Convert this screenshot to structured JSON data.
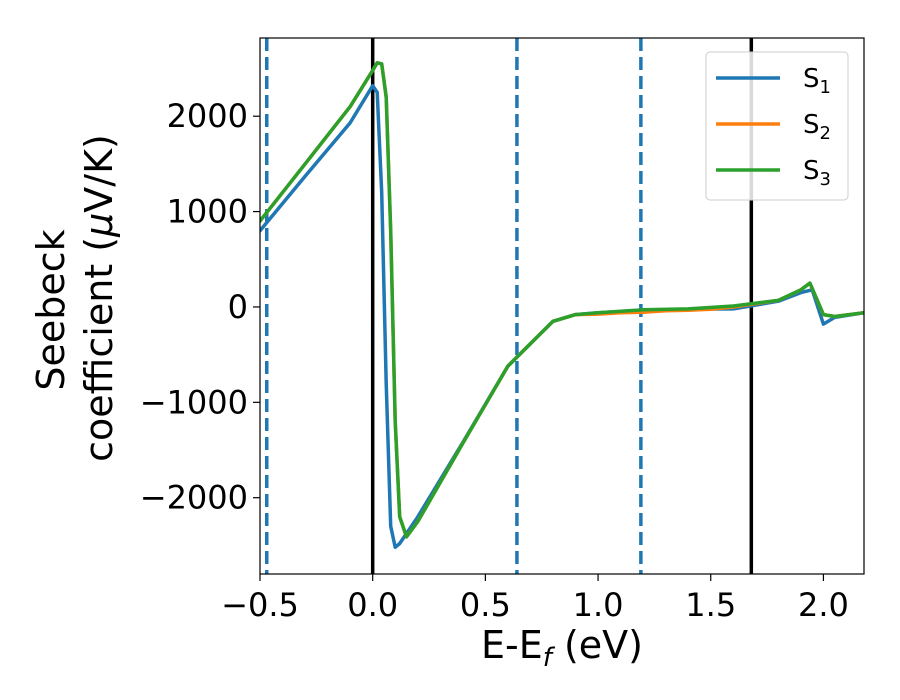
{
  "chart_data": {
    "type": "line",
    "xlabel_main": "E-E",
    "xlabel_sub": "f",
    "xlabel_unit": " (eV)",
    "ylabel_line1": "Seebeck",
    "ylabel_line2_pre": "coefficient  (",
    "ylabel_mu": "μ",
    "ylabel_line2_post": "V/K)",
    "xlim": [
      -0.5,
      2.18
    ],
    "ylim": [
      -2800,
      2820
    ],
    "xticks": [
      -0.5,
      0.0,
      0.5,
      1.0,
      1.5,
      2.0
    ],
    "xtick_labels": [
      "−0.5",
      "0.0",
      "0.5",
      "1.0",
      "1.5",
      "2.0"
    ],
    "yticks": [
      -2000,
      -1000,
      0,
      1000,
      2000
    ],
    "ytick_labels": [
      "−2000",
      "−1000",
      "0",
      "1000",
      "2000"
    ],
    "grid": false,
    "legend_position": "top-right",
    "vlines_solid": [
      0.0,
      1.68
    ],
    "vlines_dashed": [
      -0.47,
      0.64,
      1.19
    ],
    "series": [
      {
        "name_main": "S",
        "name_sub": "1",
        "color": "#1f77b4",
        "x": [
          -0.5,
          -0.3,
          -0.1,
          0.0,
          0.02,
          0.04,
          0.06,
          0.08,
          0.1,
          0.12,
          0.2,
          0.4,
          0.6,
          0.8,
          0.9,
          1.0,
          1.2,
          1.4,
          1.6,
          1.8,
          1.9,
          1.95,
          2.0,
          2.05,
          2.18
        ],
        "y": [
          800,
          1370,
          1930,
          2320,
          2250,
          1200,
          -800,
          -2300,
          -2520,
          -2480,
          -2200,
          -1420,
          -620,
          -150,
          -80,
          -60,
          -35,
          -25,
          -20,
          60,
          150,
          180,
          -180,
          -110,
          -60
        ]
      },
      {
        "name_main": "S",
        "name_sub": "2",
        "color": "#ff7f0e",
        "x": [
          -0.5,
          -0.3,
          -0.1,
          0.0,
          0.02,
          0.04,
          0.06,
          0.08,
          0.1,
          0.12,
          0.15,
          0.2,
          0.4,
          0.6,
          0.8,
          0.9,
          1.0,
          1.1,
          1.2,
          1.3,
          1.4,
          1.5,
          1.6,
          1.8,
          1.9,
          1.94,
          2.0,
          2.05,
          2.18
        ],
        "y": [
          900,
          1500,
          2100,
          2480,
          2560,
          2550,
          2200,
          800,
          -1200,
          -2200,
          -2410,
          -2250,
          -1430,
          -620,
          -150,
          -80,
          -75,
          -60,
          -55,
          -40,
          -35,
          -25,
          0,
          70,
          180,
          250,
          -80,
          -100,
          -60
        ]
      },
      {
        "name_main": "S",
        "name_sub": "3",
        "color": "#2ca02c",
        "x": [
          -0.5,
          -0.3,
          -0.1,
          0.0,
          0.02,
          0.04,
          0.06,
          0.08,
          0.1,
          0.12,
          0.15,
          0.2,
          0.4,
          0.6,
          0.8,
          0.9,
          1.0,
          1.2,
          1.4,
          1.6,
          1.8,
          1.9,
          1.94,
          2.0,
          2.05,
          2.18
        ],
        "y": [
          900,
          1500,
          2100,
          2480,
          2560,
          2550,
          2200,
          800,
          -1200,
          -2200,
          -2410,
          -2250,
          -1430,
          -620,
          -150,
          -80,
          -60,
          -30,
          -20,
          10,
          70,
          180,
          250,
          -80,
          -100,
          -60
        ]
      }
    ]
  }
}
